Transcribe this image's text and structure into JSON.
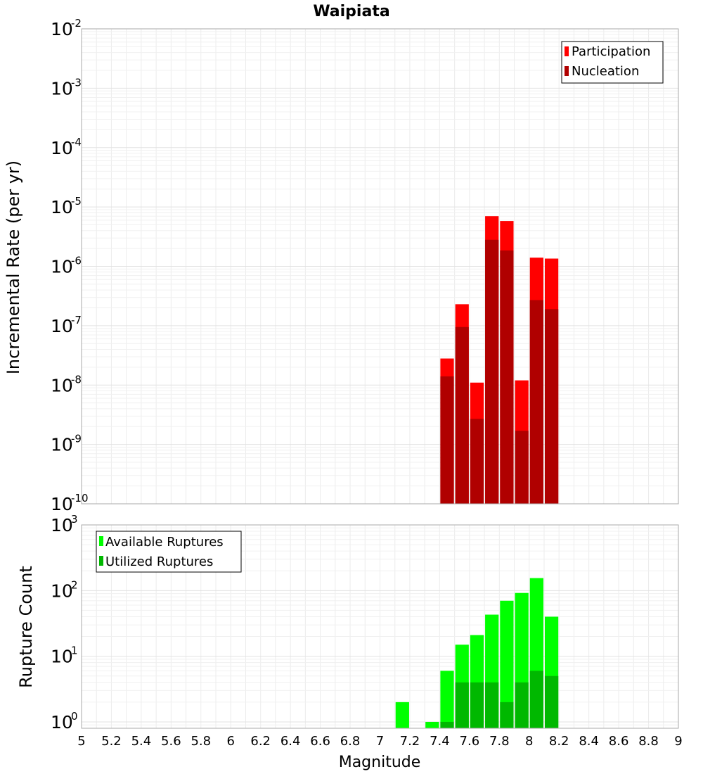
{
  "chart_data": [
    {
      "type": "bar",
      "title": "Waipiata",
      "xlabel": "",
      "ylabel": "Incremental Rate (per yr)",
      "yscale": "log",
      "ylim": [
        1e-10,
        0.01
      ],
      "ytick_exponents": [
        "-10",
        "-9",
        "-8",
        "-7",
        "-6",
        "-5",
        "-4",
        "-3",
        "-2"
      ],
      "xlim": [
        5,
        9
      ],
      "bar_width": 0.1,
      "stacked": false,
      "legend_position": "top-right",
      "colors": {
        "participation": "#ff0000",
        "nucleation": "#b00000"
      },
      "series": [
        {
          "name": "Participation",
          "x": [
            7.45,
            7.55,
            7.65,
            7.75,
            7.85,
            7.95,
            8.05,
            8.15
          ],
          "values": [
            2.8e-08,
            2.3e-07,
            1.1e-08,
            7e-06,
            5.8e-06,
            1.2e-08,
            1.4e-06,
            1.35e-06
          ]
        },
        {
          "name": "Nucleation",
          "x": [
            7.45,
            7.55,
            7.65,
            7.75,
            7.85,
            7.95,
            8.05,
            8.15
          ],
          "values": [
            1.4e-08,
            9.5e-08,
            2.7e-09,
            2.8e-06,
            1.85e-06,
            1.7e-09,
            2.7e-07,
            1.9e-07
          ]
        }
      ]
    },
    {
      "type": "bar",
      "title": "",
      "xlabel": "Magnitude",
      "ylabel": "Rupture Count",
      "yscale": "log",
      "ylim": [
        0.8,
        1000
      ],
      "ytick_exponents": [
        "0",
        "1",
        "2",
        "3"
      ],
      "xlim": [
        5,
        9
      ],
      "bar_width": 0.1,
      "stacked": false,
      "legend_position": "top-left",
      "colors": {
        "available": "#00ff00",
        "utilized": "#00b800"
      },
      "x_ticks": [
        "5",
        "5.2",
        "5.4",
        "5.6",
        "5.8",
        "6",
        "6.2",
        "6.4",
        "6.6",
        "6.8",
        "7",
        "7.2",
        "7.4",
        "7.6",
        "7.8",
        "8",
        "8.2",
        "8.4",
        "8.6",
        "8.8",
        "9"
      ],
      "series": [
        {
          "name": "Available Ruptures",
          "x": [
            7.15,
            7.35,
            7.45,
            7.55,
            7.65,
            7.75,
            7.85,
            7.95,
            8.05,
            8.15
          ],
          "values": [
            2,
            1,
            6,
            15,
            21,
            43,
            70,
            92,
            155,
            40
          ]
        },
        {
          "name": "Utilized Ruptures",
          "x": [
            7.45,
            7.55,
            7.65,
            7.75,
            7.85,
            7.95,
            8.05,
            8.15
          ],
          "values": [
            1,
            4,
            4,
            4,
            2,
            4,
            6,
            5
          ]
        }
      ]
    }
  ]
}
